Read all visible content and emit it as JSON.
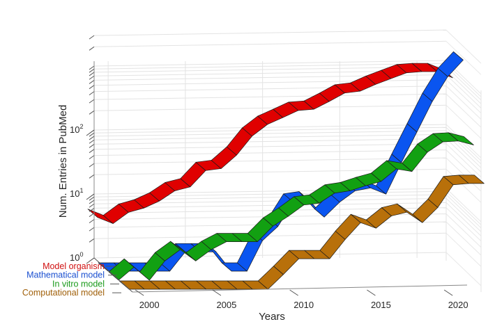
{
  "chart_data": {
    "type": "line",
    "subtype": "3d-ribbon",
    "title": "",
    "xlabel": "Years",
    "ylabel": "Num. Entries in PubMed",
    "yscale": "log",
    "ylim": [
      1,
      3000
    ],
    "xlim": [
      1999,
      2022
    ],
    "grid": true,
    "x_ticks": [
      "2000",
      "2005",
      "2010",
      "2015",
      "2020"
    ],
    "y_ticks": [
      {
        "base": "10",
        "exp": "0"
      },
      {
        "base": "10",
        "exp": "1"
      },
      {
        "base": "10",
        "exp": "2"
      }
    ],
    "x": [
      1999,
      2000,
      2001,
      2002,
      2003,
      2004,
      2005,
      2006,
      2007,
      2008,
      2009,
      2010,
      2011,
      2012,
      2013,
      2014,
      2015,
      2016,
      2017,
      2018,
      2019,
      2020,
      2021,
      2022
    ],
    "series": [
      {
        "name": "Model organism",
        "color": "#e00000",
        "label_color": "#d01010",
        "values": [
          5,
          4,
          6,
          7,
          9,
          13,
          15,
          27,
          29,
          47,
          93,
          142,
          182,
          235,
          245,
          325,
          440,
          470,
          600,
          740,
          910,
          950,
          950,
          760
        ]
      },
      {
        "name": "Mathematical model",
        "color": "#0a55f0",
        "label_color": "#1a4fd0",
        "values": [
          1,
          1,
          1,
          1,
          1,
          2,
          2,
          2,
          1,
          1,
          3,
          5,
          12,
          13,
          7,
          12,
          18,
          20,
          16,
          50,
          150,
          450,
          1100,
          2000
        ]
      },
      {
        "name": "In vitro model",
        "color": "#12a012",
        "label_color": "#1a9a1a",
        "values": [
          1,
          1.6,
          1,
          2,
          3,
          2,
          3,
          4,
          4,
          4,
          7,
          10,
          15,
          16,
          23,
          25,
          30,
          35,
          55,
          50,
          100,
          145,
          150,
          130
        ]
      },
      {
        "name": "Computational model",
        "color": "#b8700a",
        "label_color": "#a0600a",
        "values": [
          1,
          1,
          1,
          1,
          1,
          1,
          1,
          1,
          1,
          1,
          1.7,
          3,
          3,
          3,
          6,
          11,
          9,
          14,
          16,
          11,
          19,
          43,
          45,
          45
        ]
      }
    ]
  }
}
